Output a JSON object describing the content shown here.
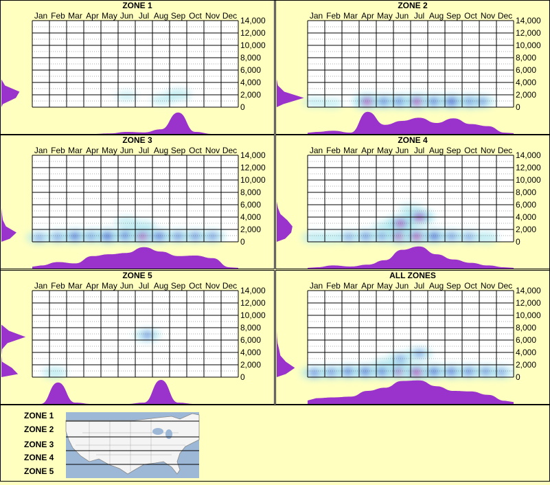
{
  "months": [
    "Jan",
    "Feb",
    "Mar",
    "Apr",
    "May",
    "Jun",
    "Jul",
    "Aug",
    "Sep",
    "Oct",
    "Nov",
    "Dec"
  ],
  "colors": {
    "background": "#ffffc0",
    "border": "#000000",
    "profile": "#9933cc",
    "heat_low": "#b0e8ee",
    "heat_mid": "#0000cc",
    "heat_high": "#ff00aa"
  },
  "chart_data": [
    {
      "type": "heatmap",
      "title": "ZONE 1",
      "ylim": [
        0,
        14000
      ],
      "yticks": [
        "14,000",
        "12,000",
        "10,000",
        "8,000",
        "6,000",
        "4,000",
        "2,000",
        "0"
      ],
      "month_profile": [
        0,
        0,
        0,
        0,
        0.02,
        0.08,
        0.06,
        0.18,
        0.82,
        0.08,
        0,
        0
      ],
      "elev_profile": [
        0.05,
        0.48,
        0.6,
        0.12,
        0,
        0,
        0,
        0,
        0,
        0,
        0,
        0,
        0,
        0
      ],
      "hotspots": [
        {
          "month": 5.5,
          "elev": 1800,
          "intensity": 0.2
        },
        {
          "month": 8.5,
          "elev": 2000,
          "intensity": 0.45
        },
        {
          "month": 7.6,
          "elev": 1200,
          "intensity": 0.3
        }
      ]
    },
    {
      "type": "heatmap",
      "title": "ZONE 2",
      "ylim": [
        0,
        14000
      ],
      "yticks": [
        "14,000",
        "12,000",
        "10,000",
        "8,000",
        "6,000",
        "4,000",
        "2,000",
        "0"
      ],
      "month_profile": [
        0.08,
        0.12,
        0.05,
        0.85,
        0.35,
        0.5,
        0.62,
        0.42,
        0.6,
        0.38,
        0.3,
        0.05
      ],
      "elev_profile": [
        0.22,
        0.9,
        0.25,
        0.04,
        0,
        0,
        0,
        0,
        0,
        0,
        0,
        0,
        0,
        0
      ],
      "hotspots": [
        {
          "month": 0.4,
          "elev": 800,
          "intensity": 0.3
        },
        {
          "month": 1.4,
          "elev": 600,
          "intensity": 0.25
        },
        {
          "month": 3.5,
          "elev": 900,
          "intensity": 0.9
        },
        {
          "month": 4.5,
          "elev": 900,
          "intensity": 0.7
        },
        {
          "month": 5.4,
          "elev": 900,
          "intensity": 0.7
        },
        {
          "month": 6.4,
          "elev": 900,
          "intensity": 0.9
        },
        {
          "month": 7.4,
          "elev": 900,
          "intensity": 0.7
        },
        {
          "month": 8.4,
          "elev": 900,
          "intensity": 0.8
        },
        {
          "month": 9.5,
          "elev": 900,
          "intensity": 0.7
        },
        {
          "month": 10.2,
          "elev": 900,
          "intensity": 0.5
        }
      ]
    },
    {
      "type": "heatmap",
      "title": "ZONE 3",
      "ylim": [
        0,
        14000
      ],
      "yticks": [
        "14,000",
        "12,000",
        "10,000",
        "8,000",
        "6,000",
        "4,000",
        "2,000",
        "0"
      ],
      "month_profile": [
        0.12,
        0.25,
        0.2,
        0.48,
        0.55,
        0.6,
        0.82,
        0.65,
        0.48,
        0.5,
        0.4,
        0.05
      ],
      "elev_profile": [
        0.28,
        0.5,
        0.15,
        0.05,
        0.02,
        0,
        0,
        0,
        0,
        0,
        0,
        0,
        0,
        0
      ],
      "hotspots": [
        {
          "month": 0.4,
          "elev": 700,
          "intensity": 0.5
        },
        {
          "month": 1.5,
          "elev": 800,
          "intensity": 0.55
        },
        {
          "month": 2.5,
          "elev": 900,
          "intensity": 0.75
        },
        {
          "month": 3.5,
          "elev": 900,
          "intensity": 0.65
        },
        {
          "month": 4.4,
          "elev": 900,
          "intensity": 0.8
        },
        {
          "month": 5.5,
          "elev": 1000,
          "intensity": 0.8
        },
        {
          "month": 6.5,
          "elev": 900,
          "intensity": 0.95
        },
        {
          "month": 7.4,
          "elev": 900,
          "intensity": 0.7
        },
        {
          "month": 8.5,
          "elev": 900,
          "intensity": 0.6
        },
        {
          "month": 9.5,
          "elev": 900,
          "intensity": 0.6
        },
        {
          "month": 10.5,
          "elev": 900,
          "intensity": 0.55
        },
        {
          "month": 5.5,
          "elev": 3200,
          "intensity": 0.35
        },
        {
          "month": 6.5,
          "elev": 2600,
          "intensity": 0.35
        }
      ]
    },
    {
      "type": "heatmap",
      "title": "ZONE 4",
      "ylim": [
        0,
        14000
      ],
      "yticks": [
        "14,000",
        "12,000",
        "10,000",
        "8,000",
        "6,000",
        "4,000",
        "2,000",
        "0"
      ],
      "month_profile": [
        0.05,
        0.12,
        0.08,
        0.15,
        0.32,
        0.72,
        0.85,
        0.55,
        0.35,
        0.22,
        0.12,
        0.05
      ],
      "elev_profile": [
        0.28,
        0.48,
        0.52,
        0.35,
        0.12,
        0.04,
        0,
        0,
        0,
        0,
        0,
        0,
        0,
        0
      ],
      "hotspots": [
        {
          "month": 0.4,
          "elev": 700,
          "intensity": 0.45
        },
        {
          "month": 1.4,
          "elev": 700,
          "intensity": 0.4
        },
        {
          "month": 2.4,
          "elev": 800,
          "intensity": 0.5
        },
        {
          "month": 3.4,
          "elev": 900,
          "intensity": 0.6
        },
        {
          "month": 4.4,
          "elev": 900,
          "intensity": 0.6
        },
        {
          "month": 5.4,
          "elev": 900,
          "intensity": 0.95
        },
        {
          "month": 6.4,
          "elev": 900,
          "intensity": 0.95
        },
        {
          "month": 7.4,
          "elev": 900,
          "intensity": 0.75
        },
        {
          "month": 8.4,
          "elev": 900,
          "intensity": 0.55
        },
        {
          "month": 9.4,
          "elev": 800,
          "intensity": 0.5
        },
        {
          "month": 10.4,
          "elev": 700,
          "intensity": 0.45
        },
        {
          "month": 5.4,
          "elev": 3000,
          "intensity": 0.85
        },
        {
          "month": 6.5,
          "elev": 4000,
          "intensity": 0.85
        },
        {
          "month": 6.0,
          "elev": 5300,
          "intensity": 0.3
        },
        {
          "month": 4.5,
          "elev": 2500,
          "intensity": 0.3
        }
      ]
    },
    {
      "type": "heatmap",
      "title": "ZONE 5",
      "ylim": [
        0,
        14000
      ],
      "yticks": [
        "14,000",
        "12,000",
        "10,000",
        "8,000",
        "6,000",
        "4,000",
        "2,000",
        "0"
      ],
      "month_profile": [
        0,
        0.82,
        0.05,
        0,
        0,
        0,
        0.05,
        0.92,
        0.05,
        0,
        0,
        0
      ],
      "elev_profile": [
        0.55,
        0.35,
        0.02,
        0,
        0.02,
        0.2,
        0.8,
        0.25,
        0,
        0,
        0,
        0,
        0,
        0
      ],
      "hotspots": [
        {
          "month": 1.3,
          "elev": 700,
          "intensity": 0.45
        },
        {
          "month": 6.7,
          "elev": 6800,
          "intensity": 0.55
        }
      ]
    },
    {
      "type": "heatmap",
      "title": "ALL ZONES",
      "ylim": [
        0,
        14000
      ],
      "yticks": [
        "14,000",
        "12,000",
        "10,000",
        "8,000",
        "6,000",
        "4,000",
        "2,000",
        "0"
      ],
      "month_profile": [
        0.22,
        0.25,
        0.28,
        0.5,
        0.62,
        0.88,
        0.9,
        0.68,
        0.5,
        0.48,
        0.35,
        0.12
      ],
      "elev_profile": [
        0.3,
        0.6,
        0.3,
        0.12,
        0.08,
        0.03,
        0.01,
        0,
        0,
        0,
        0,
        0,
        0,
        0
      ],
      "hotspots": [
        {
          "month": 0.4,
          "elev": 700,
          "intensity": 0.6
        },
        {
          "month": 1.4,
          "elev": 800,
          "intensity": 0.6
        },
        {
          "month": 2.4,
          "elev": 900,
          "intensity": 0.7
        },
        {
          "month": 3.4,
          "elev": 900,
          "intensity": 0.75
        },
        {
          "month": 4.4,
          "elev": 900,
          "intensity": 0.75
        },
        {
          "month": 5.4,
          "elev": 900,
          "intensity": 0.85
        },
        {
          "month": 6.4,
          "elev": 800,
          "intensity": 1.0
        },
        {
          "month": 7.4,
          "elev": 900,
          "intensity": 0.75
        },
        {
          "month": 8.4,
          "elev": 900,
          "intensity": 0.7
        },
        {
          "month": 9.4,
          "elev": 900,
          "intensity": 0.65
        },
        {
          "month": 10.4,
          "elev": 900,
          "intensity": 0.6
        },
        {
          "month": 11.3,
          "elev": 800,
          "intensity": 0.5
        },
        {
          "month": 5.4,
          "elev": 3000,
          "intensity": 0.5
        },
        {
          "month": 6.5,
          "elev": 3800,
          "intensity": 0.5
        },
        {
          "month": 4.5,
          "elev": 2200,
          "intensity": 0.35
        }
      ]
    }
  ],
  "legend": {
    "zones": [
      "ZONE 1",
      "ZONE 2",
      "ZONE 3",
      "ZONE 4",
      "ZONE 5"
    ]
  }
}
